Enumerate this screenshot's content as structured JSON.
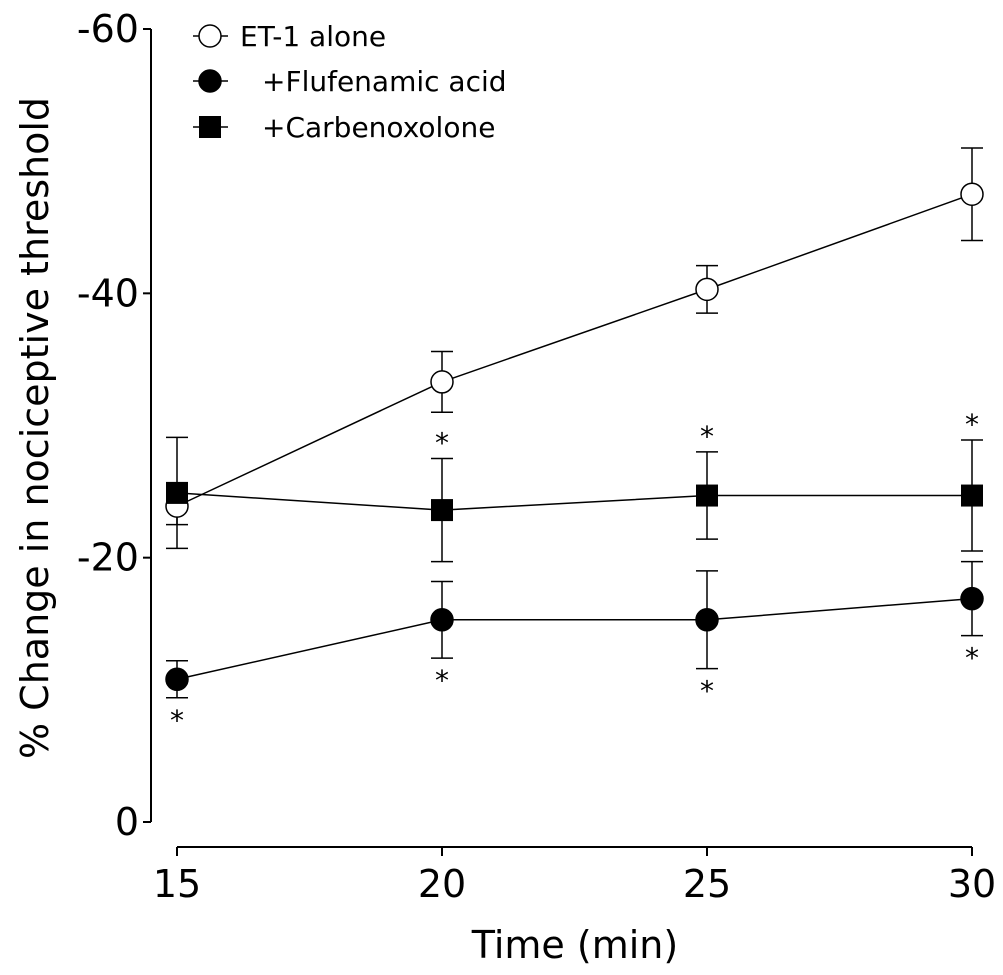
{
  "chart_data": {
    "type": "line",
    "title": "",
    "xlabel": "Time (min)",
    "ylabel": "% Change in nociceptive threshold",
    "x": [
      15,
      20,
      25,
      30
    ],
    "xlim": [
      15,
      30
    ],
    "xticks": [
      15,
      20,
      25,
      30
    ],
    "xtick_labels": [
      "15",
      "20",
      "25",
      "30"
    ],
    "ylim": [
      0,
      -60
    ],
    "yticks": [
      0,
      -20,
      -40,
      -60
    ],
    "ytick_labels": [
      "0",
      "-20",
      "-40",
      "-60"
    ],
    "grid": false,
    "legend_position": "top-left",
    "significance_marker": "*",
    "series": [
      {
        "name": "ET-1 alone",
        "marker": "open-circle",
        "values": [
          -23.9,
          -33.3,
          -40.3,
          -47.5
        ],
        "error": [
          1.4,
          2.3,
          1.8,
          3.5
        ],
        "significant": [
          false,
          false,
          false,
          false
        ],
        "star_side": []
      },
      {
        "name": "+Flufenamic acid",
        "marker": "filled-circle",
        "values": [
          -10.8,
          -15.3,
          -15.3,
          -16.9
        ],
        "error": [
          1.4,
          2.9,
          3.7,
          2.8
        ],
        "significant": [
          true,
          true,
          true,
          true
        ],
        "star_side": [
          "below",
          "below",
          "below",
          "below"
        ]
      },
      {
        "name": "+Carbenoxolone",
        "marker": "filled-square",
        "values": [
          -24.9,
          -23.6,
          -24.7,
          -24.7
        ],
        "error": [
          4.2,
          3.9,
          3.3,
          4.2
        ],
        "significant": [
          false,
          true,
          true,
          true
        ],
        "star_side": [
          "",
          "above",
          "above",
          "above"
        ]
      }
    ]
  }
}
